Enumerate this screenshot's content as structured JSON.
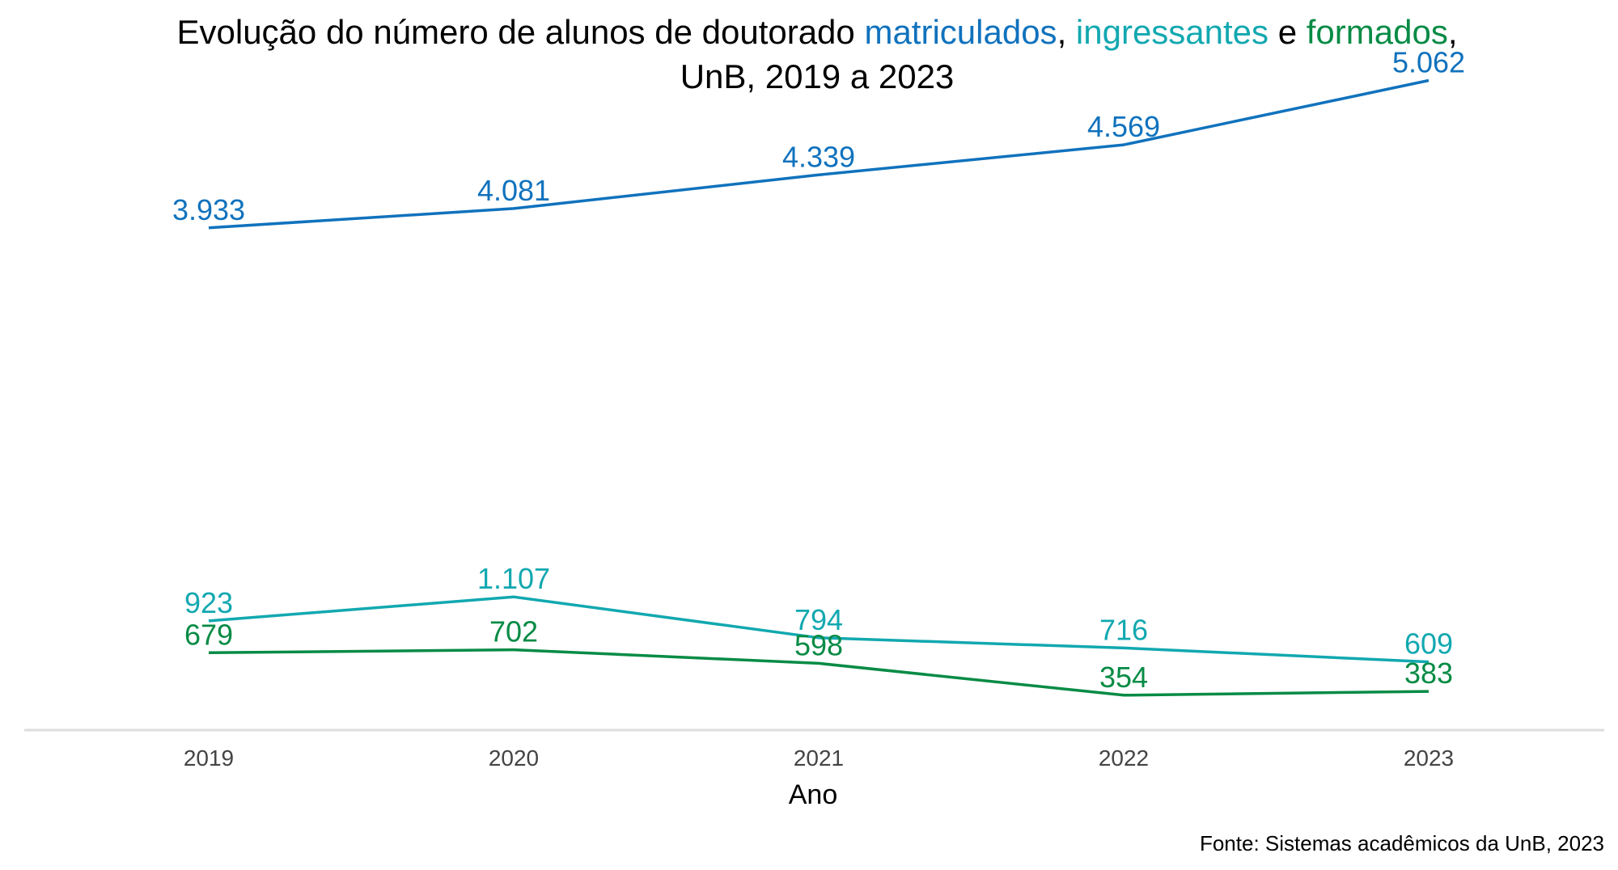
{
  "chart_data": {
    "type": "line",
    "title": {
      "line1_parts": [
        {
          "text": "Evolução do número de alunos de doutorado ",
          "color": "#000000"
        },
        {
          "text": "matriculados",
          "color": "#1072BD"
        },
        {
          "text": ", ",
          "color": "#000000"
        },
        {
          "text": "ingressantes",
          "color": "#12A8B0"
        },
        {
          "text": " e ",
          "color": "#000000"
        },
        {
          "text": "formados",
          "color": "#078B45"
        },
        {
          "text": ",",
          "color": "#000000"
        }
      ],
      "line2": "UnB, 2019 a 2023"
    },
    "xlabel": "Ano",
    "ylabel": "",
    "categories": [
      "2019",
      "2020",
      "2021",
      "2022",
      "2023"
    ],
    "series": [
      {
        "name": "matriculados",
        "color": "#1072BD",
        "values": [
          3933,
          4081,
          4339,
          4569,
          5062
        ],
        "labels": [
          "3.933",
          "4.081",
          "4.339",
          "4.569",
          "5.062"
        ]
      },
      {
        "name": "ingressantes",
        "color": "#12A8B0",
        "values": [
          923,
          1107,
          794,
          716,
          609
        ],
        "labels": [
          "923",
          "1.107",
          "794",
          "716",
          "609"
        ]
      },
      {
        "name": "formados",
        "color": "#078B45",
        "values": [
          679,
          702,
          598,
          354,
          383
        ],
        "labels": [
          "679",
          "702",
          "598",
          "354",
          "383"
        ]
      }
    ],
    "grid": false,
    "legend": "none",
    "caption": "Fonte: Sistemas acadêmicos da UnB, 2023",
    "axis_color": "#DDDDDD"
  }
}
